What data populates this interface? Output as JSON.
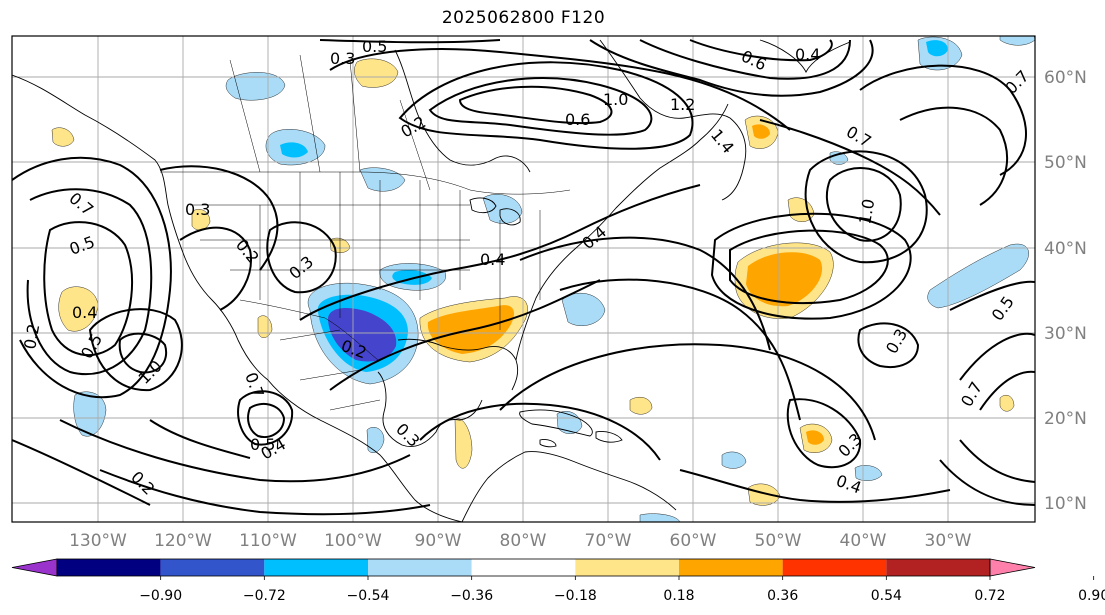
{
  "title": "2025062800 F120",
  "map": {
    "lon_labels": [
      "130°W",
      "120°W",
      "110°W",
      "100°W",
      "90°W",
      "80°W",
      "70°W",
      "60°W",
      "50°W",
      "40°W",
      "30°W"
    ],
    "lat_labels": [
      "60°N",
      "50°N",
      "40°N",
      "30°N",
      "20°N",
      "10°N"
    ],
    "contour_labels": [
      "0.5",
      "0.3",
      "0.6",
      "0.4",
      "0.2",
      "0.6",
      "1.0",
      "1.2",
      "1.4",
      "1.0",
      "0.7",
      "0.7",
      "0.5",
      "0.4",
      "0.7",
      "0.5",
      "0.3",
      "0.2",
      "0.3",
      "0.4",
      "0.2",
      "0.4",
      "0.3",
      "1.0",
      "0.5",
      "0.4",
      "0.7",
      "0.2",
      "0.3",
      "0.4",
      "0.3",
      "0.5",
      "0.7",
      "0.2"
    ]
  },
  "colorbar": {
    "ticks": [
      "−0.90",
      "−0.72",
      "−0.54",
      "−0.36",
      "−0.18",
      "0.18",
      "0.36",
      "0.54",
      "0.72",
      "0.90"
    ],
    "colors": [
      "#9933cc",
      "#000080",
      "#3355cc",
      "#00bfff",
      "#aadcf8",
      "#ffffff",
      "#ffe58a",
      "#ffa500",
      "#ff3300",
      "#b22222",
      "#ff80aa"
    ]
  },
  "colors": {
    "neg_strong": "#4444cc",
    "neg_mid": "#00bfff",
    "neg_light": "#aadcf8",
    "pos_light": "#ffe58a",
    "pos_mid": "#ffa500",
    "grid": "#aaaaaa",
    "axis_label": "#808080"
  }
}
